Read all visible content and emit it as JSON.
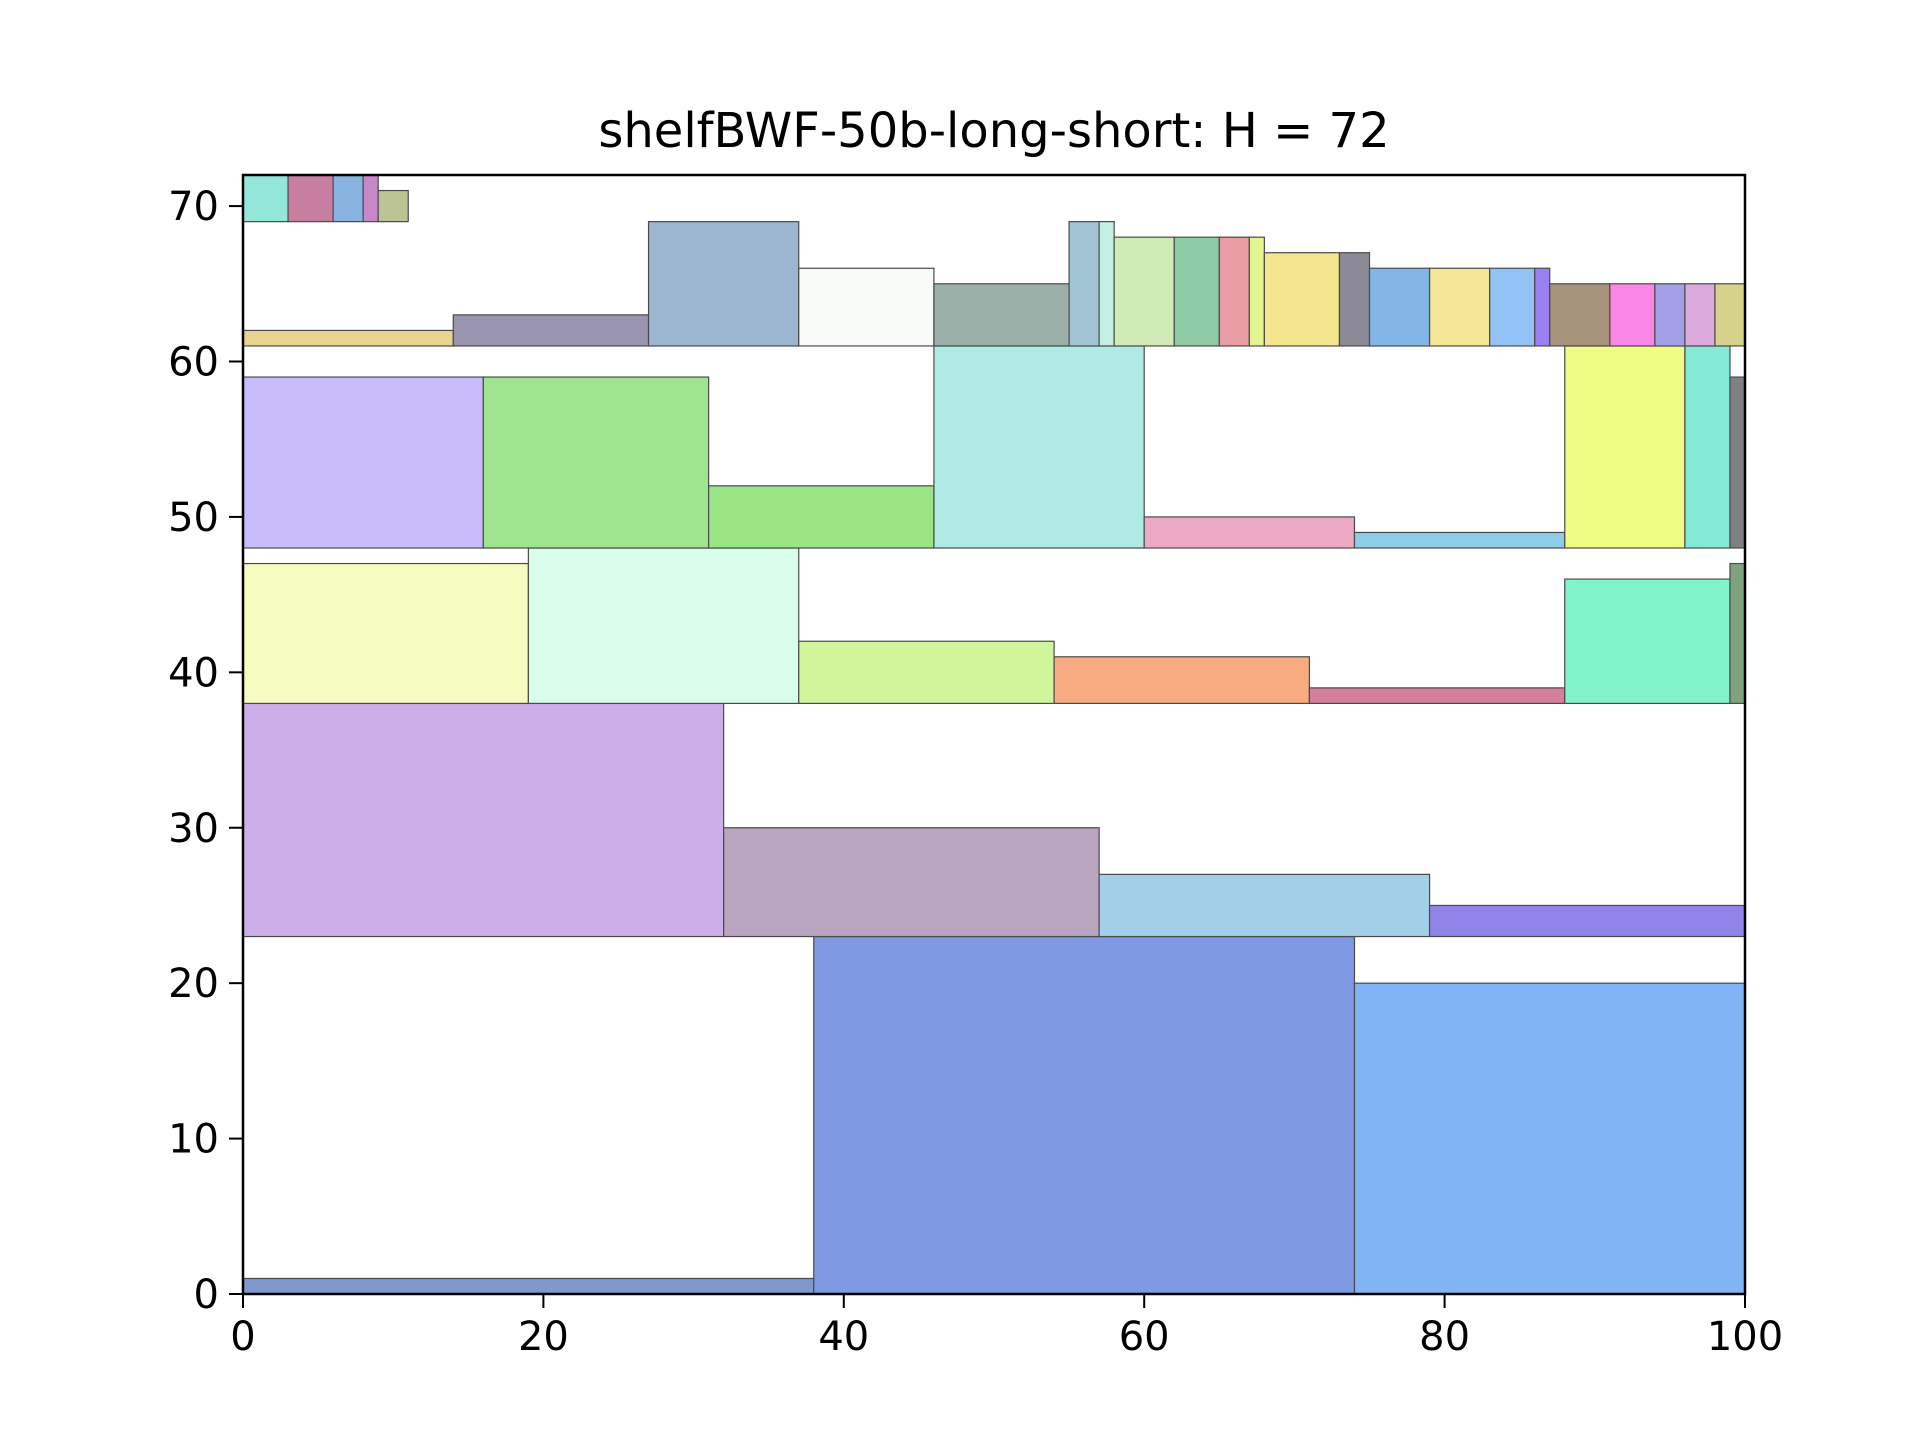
{
  "chart_data": {
    "type": "rectangles",
    "title": "shelfBWF-50b-long-short: H = 72",
    "xlim": [
      0,
      100
    ],
    "ylim": [
      0,
      72
    ],
    "x_ticks": [
      0,
      20,
      40,
      60,
      80,
      100
    ],
    "y_ticks": [
      0,
      10,
      20,
      30,
      40,
      50,
      60,
      70
    ],
    "grid": false,
    "rects": [
      {
        "x": 0,
        "y": 0,
        "w": 38,
        "h": 1,
        "color": "#7f99cc"
      },
      {
        "x": 38,
        "y": 0,
        "w": 36,
        "h": 23,
        "color": "#7f99e3"
      },
      {
        "x": 74,
        "y": 0,
        "w": 26,
        "h": 20,
        "color": "#80b4f4"
      },
      {
        "x": 0,
        "y": 23,
        "w": 32,
        "h": 15,
        "color": "#cdaee9"
      },
      {
        "x": 32,
        "y": 23,
        "w": 25,
        "h": 7,
        "color": "#b9a5bd"
      },
      {
        "x": 57,
        "y": 23,
        "w": 22,
        "h": 4,
        "color": "#a3d0e8"
      },
      {
        "x": 79,
        "y": 23,
        "w": 21,
        "h": 2,
        "color": "#9084e8"
      },
      {
        "x": 0,
        "y": 38,
        "w": 19,
        "h": 9,
        "color": "#f6fbc0"
      },
      {
        "x": 19,
        "y": 38,
        "w": 18,
        "h": 10,
        "color": "#d8fde8"
      },
      {
        "x": 37,
        "y": 38,
        "w": 17,
        "h": 4,
        "color": "#d0f69b"
      },
      {
        "x": 54,
        "y": 38,
        "w": 17,
        "h": 3,
        "color": "#f8aa80"
      },
      {
        "x": 71,
        "y": 38,
        "w": 17,
        "h": 1,
        "color": "#d47f9b"
      },
      {
        "x": 88,
        "y": 38,
        "w": 11,
        "h": 8,
        "color": "#82f4c9"
      },
      {
        "x": 99,
        "y": 38,
        "w": 1,
        "h": 9,
        "color": "#7fa37f"
      },
      {
        "x": 0,
        "y": 48,
        "w": 16,
        "h": 11,
        "color": "#c8bcfa"
      },
      {
        "x": 16,
        "y": 48,
        "w": 15,
        "h": 11,
        "color": "#a0e48f"
      },
      {
        "x": 31,
        "y": 48,
        "w": 15,
        "h": 4,
        "color": "#9ae686"
      },
      {
        "x": 46,
        "y": 48,
        "w": 14,
        "h": 13,
        "color": "#aeebe5"
      },
      {
        "x": 60,
        "y": 48,
        "w": 14,
        "h": 2,
        "color": "#eba9c6"
      },
      {
        "x": 74,
        "y": 48,
        "w": 14,
        "h": 1,
        "color": "#8fcde6"
      },
      {
        "x": 88,
        "y": 48,
        "w": 8,
        "h": 13,
        "color": "#f0fb82"
      },
      {
        "x": 96,
        "y": 48,
        "w": 3,
        "h": 13,
        "color": "#84ead5"
      },
      {
        "x": 99,
        "y": 48,
        "w": 1,
        "h": 11,
        "color": "#7f8080"
      },
      {
        "x": 0,
        "y": 61,
        "w": 14,
        "h": 1,
        "color": "#e6d48f"
      },
      {
        "x": 14,
        "y": 61,
        "w": 13,
        "h": 2,
        "color": "#9994b0"
      },
      {
        "x": 27,
        "y": 61,
        "w": 10,
        "h": 8,
        "color": "#9cb5d0"
      },
      {
        "x": 37,
        "y": 61,
        "w": 9,
        "h": 5,
        "color": "#f8faf8"
      },
      {
        "x": 46,
        "y": 61,
        "w": 9,
        "h": 4,
        "color": "#9cb0aa"
      },
      {
        "x": 55,
        "y": 61,
        "w": 2,
        "h": 8,
        "color": "#a2c5d3"
      },
      {
        "x": 57,
        "y": 61,
        "w": 1,
        "h": 8,
        "color": "#c3f0e3"
      },
      {
        "x": 58,
        "y": 61,
        "w": 4,
        "h": 7,
        "color": "#d0ebb6"
      },
      {
        "x": 62,
        "y": 61,
        "w": 3,
        "h": 7,
        "color": "#8ecaa6"
      },
      {
        "x": 65,
        "y": 61,
        "w": 2,
        "h": 7,
        "color": "#e89ca4"
      },
      {
        "x": 67,
        "y": 61,
        "w": 1,
        "h": 7,
        "color": "#e3f58f"
      },
      {
        "x": 68,
        "y": 61,
        "w": 5,
        "h": 6,
        "color": "#f3e68e"
      },
      {
        "x": 73,
        "y": 61,
        "w": 2,
        "h": 6,
        "color": "#8c8a96"
      },
      {
        "x": 75,
        "y": 61,
        "w": 4,
        "h": 5,
        "color": "#82b6e6"
      },
      {
        "x": 79,
        "y": 61,
        "w": 4,
        "h": 5,
        "color": "#f3e796"
      },
      {
        "x": 83,
        "y": 61,
        "w": 3,
        "h": 5,
        "color": "#92c2f6"
      },
      {
        "x": 86,
        "y": 61,
        "w": 1,
        "h": 5,
        "color": "#9a80f0"
      },
      {
        "x": 87,
        "y": 61,
        "w": 4,
        "h": 4,
        "color": "#a8947c"
      },
      {
        "x": 91,
        "y": 61,
        "w": 3,
        "h": 4,
        "color": "#fa86e8"
      },
      {
        "x": 94,
        "y": 61,
        "w": 2,
        "h": 4,
        "color": "#a4a0e8"
      },
      {
        "x": 96,
        "y": 61,
        "w": 2,
        "h": 4,
        "color": "#dcaadc"
      },
      {
        "x": 98,
        "y": 61,
        "w": 2,
        "h": 4,
        "color": "#d6d28a"
      },
      {
        "x": 0,
        "y": 69,
        "w": 3,
        "h": 3,
        "color": "#94e6da"
      },
      {
        "x": 3,
        "y": 69,
        "w": 3,
        "h": 3,
        "color": "#c87ea0"
      },
      {
        "x": 6,
        "y": 69,
        "w": 2,
        "h": 3,
        "color": "#88b2e0"
      },
      {
        "x": 8,
        "y": 69,
        "w": 1,
        "h": 3,
        "color": "#c888c8"
      },
      {
        "x": 9,
        "y": 69,
        "w": 2,
        "h": 2,
        "color": "#bcc496"
      }
    ]
  }
}
